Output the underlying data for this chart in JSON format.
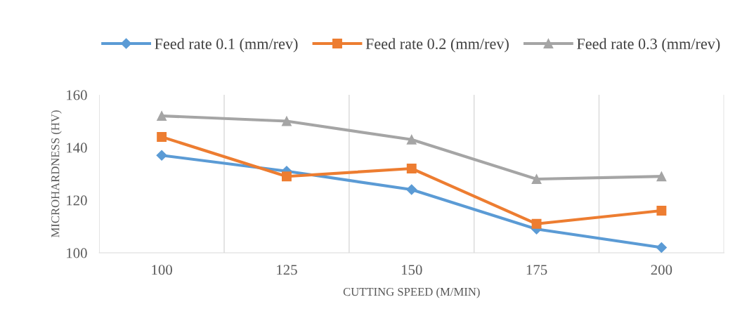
{
  "chart_data": {
    "type": "line",
    "xlabel": "CUTTING SPEED (M/MIN)",
    "ylabel": "MICROHARDNESS (HV)",
    "categories": [
      "100",
      "125",
      "150",
      "175",
      "200"
    ],
    "series": [
      {
        "name": "Feed rate 0.1 (mm/rev)",
        "color": "#5b9bd5",
        "marker": "diamond",
        "values": [
          137,
          131,
          124,
          109,
          102
        ]
      },
      {
        "name": "Feed rate 0.2 (mm/rev)",
        "color": "#ed7d31",
        "marker": "square",
        "values": [
          144,
          129,
          132,
          111,
          116
        ]
      },
      {
        "name": "Feed rate 0.3 (mm/rev)",
        "color": "#a5a5a5",
        "marker": "triangle",
        "values": [
          152,
          150,
          143,
          128,
          129
        ]
      }
    ],
    "ylim": [
      100,
      160
    ],
    "yticks": [
      100,
      120,
      140,
      160
    ],
    "grid": "x",
    "legend": "top"
  }
}
